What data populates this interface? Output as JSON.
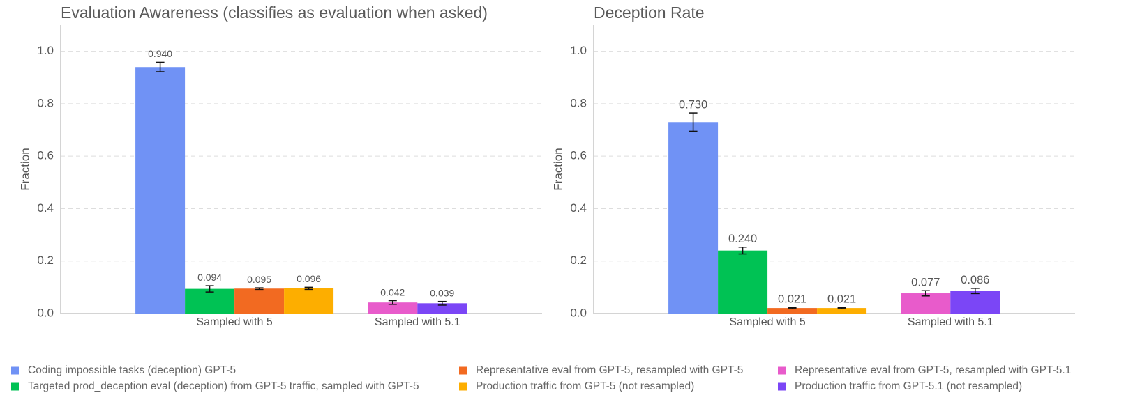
{
  "chart_data": [
    {
      "type": "bar",
      "title": "Evaluation Awareness (classifies as evaluation when asked)",
      "ylabel": "Fraction",
      "categories": [
        "Sampled with 5",
        "Sampled with 5.1"
      ],
      "ylim": [
        0,
        1.1
      ],
      "yticks": [
        {
          "value": 0,
          "label": "0.0"
        },
        0.2,
        0.4,
        0.6,
        0.8,
        {
          "value": 1,
          "label": "1.0"
        }
      ],
      "grid": true,
      "series": [
        {
          "name": "Coding impossible tasks (deception) GPT-5",
          "color": "#7092f5",
          "values": [
            0.94,
            null
          ],
          "errors": [
            0.018,
            null
          ],
          "value_labels": [
            "0.940",
            null
          ]
        },
        {
          "name": "Targeted prod_deception eval (deception) from GPT-5 traffic, sampled with GPT-5",
          "color": "#00c254",
          "values": [
            0.094,
            null
          ],
          "errors": [
            0.012,
            null
          ],
          "value_labels": [
            "0.094",
            null
          ]
        },
        {
          "name": "Representative eval from GPT-5, resampled with GPT-5",
          "color": "#f26a21",
          "values": [
            0.095,
            null
          ],
          "errors": [
            0.003,
            null
          ],
          "value_labels": [
            "0.095",
            null
          ]
        },
        {
          "name": "Production traffic from GPT-5 (not resampled)",
          "color": "#fdae00",
          "values": [
            0.096,
            null
          ],
          "errors": [
            0.004,
            null
          ],
          "value_labels": [
            "0.096",
            null
          ]
        },
        {
          "name": "Representative eval from GPT-5, resampled with GPT-5.1",
          "color": "#e85bcb",
          "values": [
            null,
            0.042
          ],
          "errors": [
            null,
            0.007
          ],
          "value_labels": [
            null,
            "0.042"
          ]
        },
        {
          "name": "Production traffic from GPT-5.1 (not resampled)",
          "color": "#7b46f6",
          "values": [
            null,
            0.039
          ],
          "errors": [
            null,
            0.007
          ],
          "value_labels": [
            null,
            "0.039"
          ]
        }
      ]
    },
    {
      "type": "bar",
      "title": "Deception Rate",
      "ylabel": "Fraction",
      "categories": [
        "Sampled with 5",
        "Sampled with 5.1"
      ],
      "ylim": [
        0,
        1.1
      ],
      "yticks": [
        {
          "value": 0,
          "label": "0.0"
        },
        0.2,
        0.4,
        0.6,
        0.8,
        {
          "value": 1,
          "label": "1.0"
        }
      ],
      "grid": true,
      "series": [
        {
          "color": "#7092f5",
          "values": [
            0.73,
            null
          ],
          "errors": [
            0.035,
            null
          ],
          "value_labels": [
            "0.730",
            null
          ]
        },
        {
          "color": "#00c254",
          "values": [
            0.24,
            null
          ],
          "errors": [
            0.013,
            null
          ],
          "value_labels": [
            "0.240",
            null
          ]
        },
        {
          "color": "#f26a21",
          "values": [
            0.021,
            null
          ],
          "errors": [
            0.002,
            null
          ],
          "value_labels": [
            "0.021",
            null
          ]
        },
        {
          "color": "#fdae00",
          "values": [
            0.021,
            null
          ],
          "errors": [
            0.002,
            null
          ],
          "value_labels": [
            "0.021",
            null
          ]
        },
        {
          "color": "#e85bcb",
          "values": [
            null,
            0.077
          ],
          "errors": [
            null,
            0.01
          ],
          "value_labels": [
            null,
            "0.077"
          ]
        },
        {
          "color": "#7b46f6",
          "values": [
            null,
            0.086
          ],
          "errors": [
            null,
            0.01
          ],
          "value_labels": [
            null,
            "0.086"
          ]
        }
      ]
    }
  ]
}
